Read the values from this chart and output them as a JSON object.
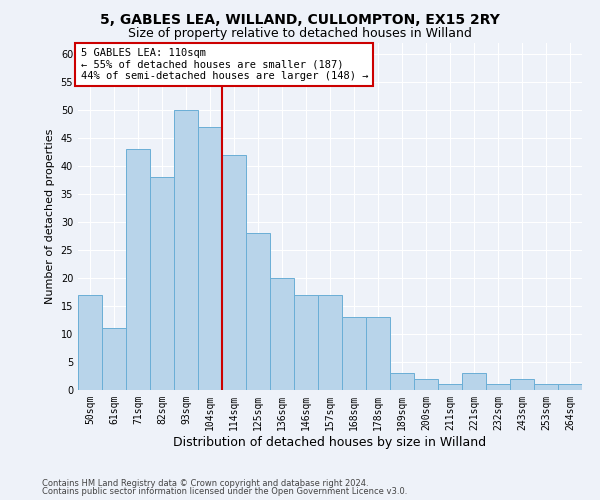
{
  "title1": "5, GABLES LEA, WILLAND, CULLOMPTON, EX15 2RY",
  "title2": "Size of property relative to detached houses in Willand",
  "xlabel": "Distribution of detached houses by size in Willand",
  "ylabel": "Number of detached properties",
  "footer1": "Contains HM Land Registry data © Crown copyright and database right 2024.",
  "footer2": "Contains public sector information licensed under the Open Government Licence v3.0.",
  "bin_labels": [
    "50sqm",
    "61sqm",
    "71sqm",
    "82sqm",
    "93sqm",
    "104sqm",
    "114sqm",
    "125sqm",
    "136sqm",
    "146sqm",
    "157sqm",
    "168sqm",
    "178sqm",
    "189sqm",
    "200sqm",
    "211sqm",
    "221sqm",
    "232sqm",
    "243sqm",
    "253sqm",
    "264sqm"
  ],
  "bar_values": [
    17,
    11,
    43,
    38,
    50,
    47,
    42,
    28,
    20,
    17,
    17,
    13,
    13,
    3,
    2,
    1,
    3,
    1,
    2,
    1,
    1
  ],
  "bar_color": "#b8d4ea",
  "bar_edge_color": "#6aaed6",
  "property_line_color": "#cc0000",
  "annotation_title": "5 GABLES LEA: 110sqm",
  "annotation_line1": "← 55% of detached houses are smaller (187)",
  "annotation_line2": "44% of semi-detached houses are larger (148) →",
  "annotation_box_color": "#cc0000",
  "ylim": [
    0,
    62
  ],
  "yticks": [
    0,
    5,
    10,
    15,
    20,
    25,
    30,
    35,
    40,
    45,
    50,
    55,
    60
  ],
  "background_color": "#eef2f9",
  "plot_bg_color": "#eef2f9",
  "grid_color": "#ffffff",
  "title1_fontsize": 10,
  "title2_fontsize": 9,
  "xlabel_fontsize": 9,
  "ylabel_fontsize": 8,
  "annotation_fontsize": 7.5,
  "tick_fontsize": 7,
  "footer_fontsize": 6
}
